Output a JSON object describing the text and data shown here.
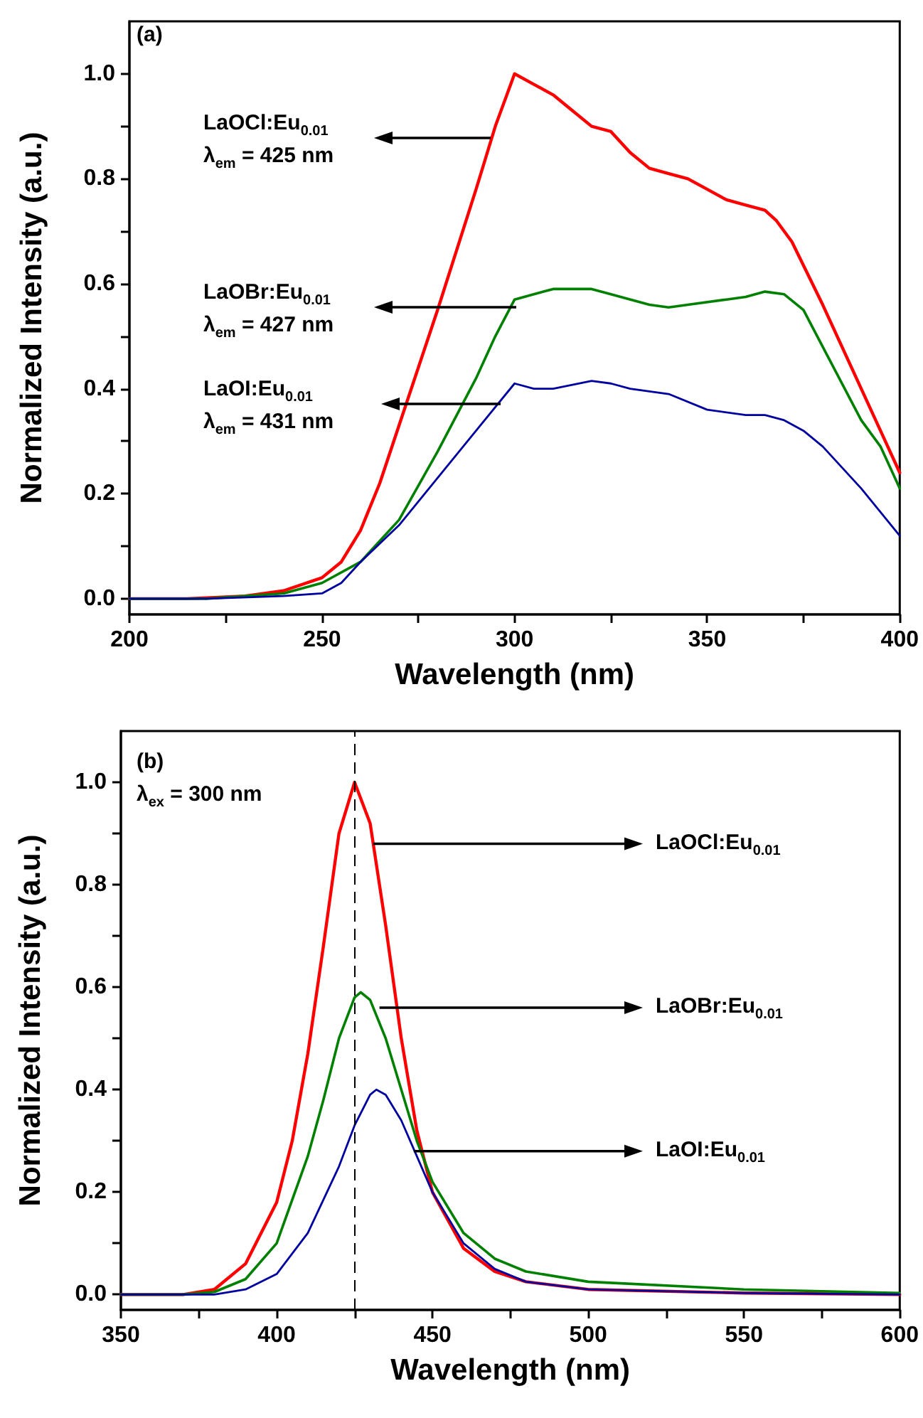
{
  "chart_data": [
    {
      "type": "line",
      "xlabel": "Wavelength (nm)",
      "ylabel": "Normalized Intensity (a.u.)",
      "annotations": [
        "(a)",
        "LaOCl:Eu$_{0.01}$",
        "λ$_{em}$ = 425 nm",
        "LaOBr:Eu$_{0.01}$",
        "λ$_{em}$ = 427 nm",
        "LaOI:Eu$_{0.01}$",
        "λ$_{em}$ = 431 nm"
      ],
      "xlim": [
        200,
        400
      ],
      "ylim": [
        -0.03,
        1.1
      ],
      "xticks": [
        200,
        {
          "value": 225,
          "label": null
        },
        250,
        {
          "value": 275,
          "label": null
        },
        300,
        {
          "value": 325,
          "label": null
        },
        350,
        {
          "value": 375,
          "label": null
        },
        400
      ],
      "yticks": [
        {
          "value": 0,
          "label": "0.0"
        },
        {
          "value": 0.1,
          "label": null
        },
        {
          "value": 0.2,
          "label": "0.2"
        },
        {
          "value": 0.3,
          "label": null
        },
        {
          "value": 0.4,
          "label": "0.4"
        },
        {
          "value": 0.5,
          "label": null
        },
        {
          "value": 0.6,
          "label": "0.6"
        },
        {
          "value": 0.7,
          "label": null
        },
        {
          "value": 0.8,
          "label": "0.8"
        },
        {
          "value": 0.9,
          "label": null
        },
        {
          "value": 1.0,
          "label": "1.0"
        }
      ],
      "grid": false,
      "line_style": "solid",
      "series": [
        {
          "color": "#ff0000",
          "x": [
            200,
            215,
            230,
            240,
            250,
            255,
            260,
            265,
            270,
            280,
            290,
            295,
            300,
            305,
            310,
            315,
            320,
            325,
            330,
            335,
            340,
            345,
            350,
            355,
            360,
            365,
            368,
            372,
            380,
            390,
            395,
            400
          ],
          "values": [
            0,
            0,
            0.005,
            0.015,
            0.04,
            0.07,
            0.13,
            0.22,
            0.33,
            0.55,
            0.78,
            0.9,
            1.0,
            0.98,
            0.96,
            0.93,
            0.9,
            0.89,
            0.85,
            0.82,
            0.81,
            0.8,
            0.78,
            0.76,
            0.75,
            0.74,
            0.72,
            0.68,
            0.56,
            0.4,
            0.32,
            0.24
          ]
        },
        {
          "color": "#008000",
          "x": [
            200,
            220,
            240,
            250,
            260,
            270,
            280,
            290,
            295,
            300,
            305,
            310,
            320,
            325,
            335,
            340,
            345,
            355,
            360,
            365,
            370,
            375,
            380,
            390,
            395,
            400
          ],
          "values": [
            0,
            0,
            0.01,
            0.03,
            0.07,
            0.15,
            0.28,
            0.42,
            0.5,
            0.57,
            0.58,
            0.59,
            0.59,
            0.58,
            0.56,
            0.555,
            0.56,
            0.57,
            0.575,
            0.585,
            0.58,
            0.55,
            0.48,
            0.34,
            0.29,
            0.21
          ]
        },
        {
          "color": "#0000a0",
          "x": [
            200,
            220,
            240,
            250,
            255,
            260,
            270,
            280,
            290,
            300,
            305,
            310,
            320,
            325,
            330,
            340,
            350,
            360,
            365,
            370,
            375,
            380,
            390,
            400
          ],
          "values": [
            0,
            0,
            0.005,
            0.01,
            0.03,
            0.07,
            0.14,
            0.23,
            0.32,
            0.41,
            0.4,
            0.4,
            0.415,
            0.41,
            0.4,
            0.39,
            0.36,
            0.35,
            0.35,
            0.34,
            0.32,
            0.29,
            0.21,
            0.12
          ]
        }
      ]
    },
    {
      "type": "line",
      "xlabel": "Wavelength (nm)",
      "ylabel": "Normalized Intensity (a.u.)",
      "annotations": [
        "(b)",
        "λ$_{ex}$ = 300 nm",
        {
          "text": "LaOCl:Eu$_{0.01}$",
          "x": 431,
          "y": 0.88
        },
        {
          "text": "LaOBr:Eu$_{0.01}$",
          "x": 433,
          "y": 0.56
        },
        {
          "text": "LaOI:Eu$_{0.01}$",
          "x": 444,
          "y": 0.28
        }
      ],
      "xlim": [
        350,
        600
      ],
      "ylim": [
        -0.03,
        1.1
      ],
      "xticks": [
        350,
        {
          "value": 375,
          "label": null
        },
        400,
        {
          "value": 425,
          "label": null
        },
        450,
        {
          "value": 475,
          "label": null
        },
        500,
        {
          "value": 525,
          "label": null
        },
        550,
        {
          "value": 575,
          "label": null
        },
        600
      ],
      "yticks": [
        {
          "value": 0,
          "label": "0.0"
        },
        {
          "value": 0.1,
          "label": null
        },
        {
          "value": 0.2,
          "label": "0.2"
        },
        {
          "value": 0.3,
          "label": null
        },
        {
          "value": 0.4,
          "label": "0.4"
        },
        {
          "value": 0.5,
          "label": null
        },
        {
          "value": 0.6,
          "label": "0.6"
        },
        {
          "value": 0.7,
          "label": null
        },
        {
          "value": 0.8,
          "label": "0.8"
        },
        {
          "value": 0.9,
          "label": null
        },
        {
          "value": 1.0,
          "label": "1.0"
        }
      ],
      "grid": false,
      "line_style": "solid",
      "ref_lines": [
        {
          "axis": "x",
          "value": 425,
          "color": "#000000",
          "line_style": "dashed"
        }
      ],
      "series": [
        {
          "color": "#ff0000",
          "x": [
            350,
            370,
            380,
            390,
            400,
            405,
            410,
            415,
            420,
            425,
            430,
            435,
            440,
            445,
            450,
            460,
            470,
            480,
            500,
            550,
            600
          ],
          "values": [
            0,
            0,
            0.01,
            0.06,
            0.18,
            0.3,
            0.47,
            0.68,
            0.9,
            1.0,
            0.92,
            0.72,
            0.5,
            0.32,
            0.2,
            0.09,
            0.045,
            0.025,
            0.01,
            0.003,
            0
          ]
        },
        {
          "color": "#008000",
          "x": [
            350,
            370,
            380,
            390,
            400,
            410,
            415,
            420,
            425,
            427,
            430,
            435,
            440,
            445,
            450,
            460,
            470,
            480,
            500,
            550,
            600
          ],
          "values": [
            0,
            0,
            0.005,
            0.03,
            0.1,
            0.27,
            0.38,
            0.5,
            0.58,
            0.59,
            0.575,
            0.5,
            0.4,
            0.3,
            0.22,
            0.12,
            0.07,
            0.045,
            0.025,
            0.01,
            0.003
          ]
        },
        {
          "color": "#0000a0",
          "x": [
            350,
            380,
            390,
            400,
            410,
            420,
            425,
            430,
            432,
            435,
            440,
            445,
            450,
            460,
            470,
            480,
            500,
            550,
            600
          ],
          "values": [
            0,
            0,
            0.01,
            0.04,
            0.12,
            0.25,
            0.33,
            0.39,
            0.4,
            0.39,
            0.34,
            0.27,
            0.2,
            0.1,
            0.05,
            0.025,
            0.01,
            0.003,
            0
          ]
        }
      ]
    }
  ]
}
